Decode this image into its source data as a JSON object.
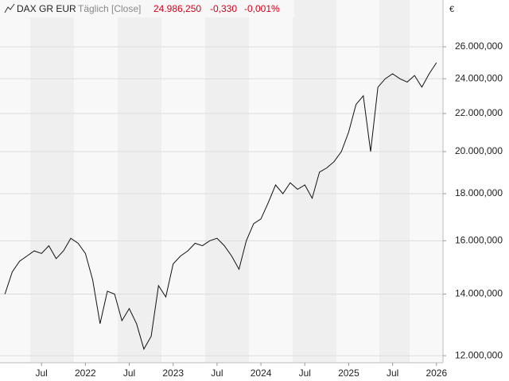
{
  "chart_data": {
    "type": "line",
    "title": "DAX GR EUR",
    "subtitle": "Täglich [Close]",
    "last_value": "24.986,250",
    "change": "-0,330",
    "change_percent": "-0,001%",
    "currency": "€",
    "log_scale": true,
    "grid": true,
    "x": [
      "2021-02",
      "2021-03",
      "2021-04",
      "2021-05",
      "2021-06",
      "2021-07",
      "2021-08",
      "2021-09",
      "2021-10",
      "2021-11",
      "2021-12",
      "2022-01",
      "2022-02",
      "2022-03",
      "2022-04",
      "2022-05",
      "2022-06",
      "2022-07",
      "2022-08",
      "2022-09",
      "2022-10",
      "2022-11",
      "2022-12",
      "2023-01",
      "2023-02",
      "2023-03",
      "2023-04",
      "2023-05",
      "2023-06",
      "2023-07",
      "2023-08",
      "2023-09",
      "2023-10",
      "2023-11",
      "2023-12",
      "2024-01",
      "2024-02",
      "2024-03",
      "2024-04",
      "2024-05",
      "2024-06",
      "2024-07",
      "2024-08",
      "2024-09",
      "2024-10",
      "2024-11",
      "2024-12",
      "2025-01",
      "2025-02",
      "2025-03",
      "2025-04",
      "2025-05",
      "2025-06",
      "2025-07",
      "2025-08",
      "2025-09",
      "2025-10",
      "2025-11",
      "2025-12",
      "2026-01"
    ],
    "series": [
      {
        "name": "DAX GR EUR",
        "color": "#111111",
        "values": [
          14000,
          14800,
          15200,
          15400,
          15600,
          15500,
          15800,
          15300,
          15600,
          16100,
          15900,
          15500,
          14500,
          13000,
          14100,
          14000,
          13100,
          13500,
          13000,
          12200,
          12600,
          14300,
          13900,
          15100,
          15400,
          15600,
          15900,
          15800,
          16000,
          16100,
          15800,
          15400,
          14900,
          16000,
          16700,
          16900,
          17600,
          18400,
          18000,
          18500,
          18200,
          18400,
          17800,
          19000,
          19200,
          19500,
          20000,
          21000,
          22500,
          23000,
          20000,
          23500,
          24000,
          24300,
          24000,
          23800,
          24200,
          23500,
          24300,
          24986.25
        ]
      }
    ],
    "xlim": [
      "2021-01",
      "2026-02"
    ],
    "xticks": [
      {
        "value": "2021-07",
        "label": "Jul"
      },
      {
        "value": "2022-01",
        "label": "2022"
      },
      {
        "value": "2022-07",
        "label": "Jul"
      },
      {
        "value": "2023-01",
        "label": "2023"
      },
      {
        "value": "2023-07",
        "label": "Jul"
      },
      {
        "value": "2024-01",
        "label": "2024"
      },
      {
        "value": "2024-07",
        "label": "Jul"
      },
      {
        "value": "2025-01",
        "label": "2025"
      },
      {
        "value": "2025-07",
        "label": "Jul"
      },
      {
        "value": "2026-01",
        "label": "2026"
      }
    ],
    "ylim": [
      11790,
      29230
    ],
    "yticks": [
      {
        "value": 12000,
        "label": "12.000,000"
      },
      {
        "value": 14000,
        "label": "14.000,000"
      },
      {
        "value": 16000,
        "label": "16.000,000"
      },
      {
        "value": 18000,
        "label": "18.000,000"
      },
      {
        "value": 20000,
        "label": "20.000,000"
      },
      {
        "value": 22000,
        "label": "22.000,000"
      },
      {
        "value": 24000,
        "label": "24.000,000"
      },
      {
        "value": 26000,
        "label": "26.000,000"
      }
    ]
  }
}
